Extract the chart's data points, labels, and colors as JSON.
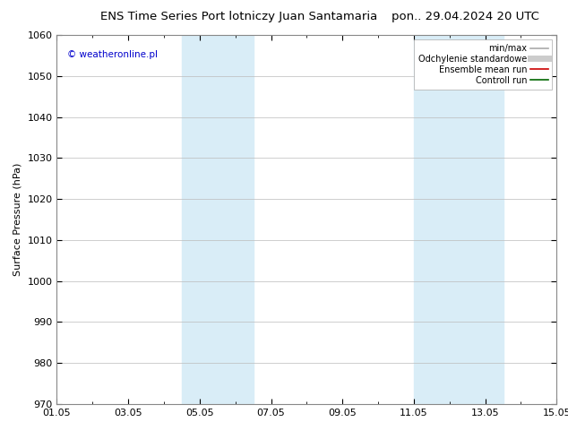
{
  "title_left": "ENS Time Series Port lotniczy Juan Santamaria",
  "title_right": "pon.. 29.04.2024 20 UTC",
  "ylabel": "Surface Pressure (hPa)",
  "ylim": [
    970,
    1060
  ],
  "yticks": [
    970,
    980,
    990,
    1000,
    1010,
    1020,
    1030,
    1040,
    1050,
    1060
  ],
  "xlim_start": 0,
  "xlim_end": 14,
  "xtick_positions": [
    0,
    2,
    4,
    6,
    8,
    10,
    12,
    14
  ],
  "xtick_labels": [
    "01.05",
    "03.05",
    "05.05",
    "07.05",
    "09.05",
    "11.05",
    "13.05",
    "15.05"
  ],
  "shaded_bands": [
    {
      "xmin": 3.5,
      "xmax": 5.5
    },
    {
      "xmin": 10.0,
      "xmax": 12.5
    }
  ],
  "band_color": "#d9edf7",
  "background_color": "#ffffff",
  "plot_bg_color": "#ffffff",
  "grid_color": "#bbbbbb",
  "copyright_text": "© weatheronline.pl",
  "copyright_color": "#0000cc",
  "legend_items": [
    {
      "label": "min/max",
      "color": "#aaaaaa",
      "lw": 1.2,
      "style": "solid"
    },
    {
      "label": "Odchylenie standardowe",
      "color": "#cccccc",
      "lw": 5,
      "style": "solid"
    },
    {
      "label": "Ensemble mean run",
      "color": "#cc0000",
      "lw": 1.2,
      "style": "solid"
    },
    {
      "label": "Controll run",
      "color": "#006600",
      "lw": 1.2,
      "style": "solid"
    }
  ],
  "title_fontsize": 9.5,
  "tick_fontsize": 8,
  "ylabel_fontsize": 8,
  "copyright_fontsize": 7.5,
  "legend_fontsize": 7
}
